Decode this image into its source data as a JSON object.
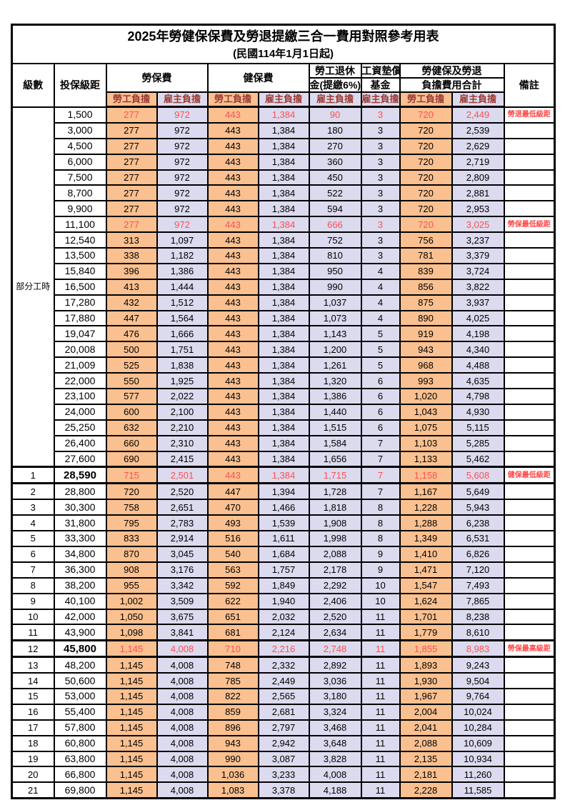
{
  "title": {
    "line1": "2025年勞健保保費及勞退提繳三合一費用對照參考用表",
    "line2": "(民國114年1月1日起)"
  },
  "header": {
    "level": "級數",
    "bracket": "投保級距",
    "labor_fee": "勞保費",
    "health_fee": "健保費",
    "pension_line1": "勞工退休",
    "pension_line2": "金(提繳6%)",
    "wage_fund_line1": "工資墊償",
    "wage_fund_line2": "基金",
    "total_line1": "勞健保及勞退",
    "total_line2": "負擔費用合計",
    "remark": "備註",
    "employee": "勞工負擔",
    "employer": "雇主負擔"
  },
  "colors": {
    "employee_bg": "#FAC090",
    "employer_bg": "#DCDAEE",
    "red_value": "#FF5050",
    "remark_red": "#FF4545",
    "subheader_text": "#9C3A32",
    "border": "#000000"
  },
  "table": {
    "part_time_label": "部分工時",
    "part_time_rowspan": 23,
    "rows": [
      {
        "level": "",
        "bracket": "1,500",
        "values": [
          "277",
          "972",
          "443",
          "1,384",
          "90",
          "3",
          "720",
          "2,449"
        ],
        "remark": "勞退最低級距",
        "red": true,
        "emphasis": false
      },
      {
        "level": "",
        "bracket": "3,000",
        "values": [
          "277",
          "972",
          "443",
          "1,384",
          "180",
          "3",
          "720",
          "2,539"
        ],
        "remark": "",
        "red": false,
        "emphasis": false
      },
      {
        "level": "",
        "bracket": "4,500",
        "values": [
          "277",
          "972",
          "443",
          "1,384",
          "270",
          "3",
          "720",
          "2,629"
        ],
        "remark": "",
        "red": false,
        "emphasis": false
      },
      {
        "level": "",
        "bracket": "6,000",
        "values": [
          "277",
          "972",
          "443",
          "1,384",
          "360",
          "3",
          "720",
          "2,719"
        ],
        "remark": "",
        "red": false,
        "emphasis": false
      },
      {
        "level": "",
        "bracket": "7,500",
        "values": [
          "277",
          "972",
          "443",
          "1,384",
          "450",
          "3",
          "720",
          "2,809"
        ],
        "remark": "",
        "red": false,
        "emphasis": false
      },
      {
        "level": "",
        "bracket": "8,700",
        "values": [
          "277",
          "972",
          "443",
          "1,384",
          "522",
          "3",
          "720",
          "2,881"
        ],
        "remark": "",
        "red": false,
        "emphasis": false
      },
      {
        "level": "",
        "bracket": "9,900",
        "values": [
          "277",
          "972",
          "443",
          "1,384",
          "594",
          "3",
          "720",
          "2,953"
        ],
        "remark": "",
        "red": false,
        "emphasis": false
      },
      {
        "level": "",
        "bracket": "11,100",
        "values": [
          "277",
          "972",
          "443",
          "1,384",
          "666",
          "3",
          "720",
          "3,025"
        ],
        "remark": "勞保最低級距",
        "red": true,
        "emphasis": false
      },
      {
        "level": "",
        "bracket": "12,540",
        "values": [
          "313",
          "1,097",
          "443",
          "1,384",
          "752",
          "3",
          "756",
          "3,237"
        ],
        "remark": "",
        "red": false,
        "emphasis": false
      },
      {
        "level": "",
        "bracket": "13,500",
        "values": [
          "338",
          "1,182",
          "443",
          "1,384",
          "810",
          "3",
          "781",
          "3,379"
        ],
        "remark": "",
        "red": false,
        "emphasis": false
      },
      {
        "level": "",
        "bracket": "15,840",
        "values": [
          "396",
          "1,386",
          "443",
          "1,384",
          "950",
          "4",
          "839",
          "3,724"
        ],
        "remark": "",
        "red": false,
        "emphasis": false
      },
      {
        "level": "",
        "bracket": "16,500",
        "values": [
          "413",
          "1,444",
          "443",
          "1,384",
          "990",
          "4",
          "856",
          "3,822"
        ],
        "remark": "",
        "red": false,
        "emphasis": false
      },
      {
        "level": "",
        "bracket": "17,280",
        "values": [
          "432",
          "1,512",
          "443",
          "1,384",
          "1,037",
          "4",
          "875",
          "3,937"
        ],
        "remark": "",
        "red": false,
        "emphasis": false
      },
      {
        "level": "",
        "bracket": "17,880",
        "values": [
          "447",
          "1,564",
          "443",
          "1,384",
          "1,073",
          "4",
          "890",
          "4,025"
        ],
        "remark": "",
        "red": false,
        "emphasis": false
      },
      {
        "level": "",
        "bracket": "19,047",
        "values": [
          "476",
          "1,666",
          "443",
          "1,384",
          "1,143",
          "5",
          "919",
          "4,198"
        ],
        "remark": "",
        "red": false,
        "emphasis": false
      },
      {
        "level": "",
        "bracket": "20,008",
        "values": [
          "500",
          "1,751",
          "443",
          "1,384",
          "1,200",
          "5",
          "943",
          "4,340"
        ],
        "remark": "",
        "red": false,
        "emphasis": false
      },
      {
        "level": "",
        "bracket": "21,009",
        "values": [
          "525",
          "1,838",
          "443",
          "1,384",
          "1,261",
          "5",
          "968",
          "4,488"
        ],
        "remark": "",
        "red": false,
        "emphasis": false
      },
      {
        "level": "",
        "bracket": "22,000",
        "values": [
          "550",
          "1,925",
          "443",
          "1,384",
          "1,320",
          "6",
          "993",
          "4,635"
        ],
        "remark": "",
        "red": false,
        "emphasis": false
      },
      {
        "level": "",
        "bracket": "23,100",
        "values": [
          "577",
          "2,022",
          "443",
          "1,384",
          "1,386",
          "6",
          "1,020",
          "4,798"
        ],
        "remark": "",
        "red": false,
        "emphasis": false
      },
      {
        "level": "",
        "bracket": "24,000",
        "values": [
          "600",
          "2,100",
          "443",
          "1,384",
          "1,440",
          "6",
          "1,043",
          "4,930"
        ],
        "remark": "",
        "red": false,
        "emphasis": false
      },
      {
        "level": "",
        "bracket": "25,250",
        "values": [
          "632",
          "2,210",
          "443",
          "1,384",
          "1,515",
          "6",
          "1,075",
          "5,115"
        ],
        "remark": "",
        "red": false,
        "emphasis": false
      },
      {
        "level": "",
        "bracket": "26,400",
        "values": [
          "660",
          "2,310",
          "443",
          "1,384",
          "1,584",
          "7",
          "1,103",
          "5,285"
        ],
        "remark": "",
        "red": false,
        "emphasis": false
      },
      {
        "level": "",
        "bracket": "27,600",
        "values": [
          "690",
          "2,415",
          "443",
          "1,384",
          "1,656",
          "7",
          "1,133",
          "5,462"
        ],
        "remark": "",
        "red": false,
        "emphasis": false
      },
      {
        "level": "1",
        "bracket": "28,590",
        "values": [
          "715",
          "2,501",
          "443",
          "1,384",
          "1,715",
          "7",
          "1,158",
          "5,608"
        ],
        "remark": "健保最低級距",
        "red": true,
        "emphasis": true
      },
      {
        "level": "2",
        "bracket": "28,800",
        "values": [
          "720",
          "2,520",
          "447",
          "1,394",
          "1,728",
          "7",
          "1,167",
          "5,649"
        ],
        "remark": "",
        "red": false,
        "emphasis": false
      },
      {
        "level": "3",
        "bracket": "30,300",
        "values": [
          "758",
          "2,651",
          "470",
          "1,466",
          "1,818",
          "8",
          "1,228",
          "5,943"
        ],
        "remark": "",
        "red": false,
        "emphasis": false
      },
      {
        "level": "4",
        "bracket": "31,800",
        "values": [
          "795",
          "2,783",
          "493",
          "1,539",
          "1,908",
          "8",
          "1,288",
          "6,238"
        ],
        "remark": "",
        "red": false,
        "emphasis": false
      },
      {
        "level": "5",
        "bracket": "33,300",
        "values": [
          "833",
          "2,914",
          "516",
          "1,611",
          "1,998",
          "8",
          "1,349",
          "6,531"
        ],
        "remark": "",
        "red": false,
        "emphasis": false
      },
      {
        "level": "6",
        "bracket": "34,800",
        "values": [
          "870",
          "3,045",
          "540",
          "1,684",
          "2,088",
          "9",
          "1,410",
          "6,826"
        ],
        "remark": "",
        "red": false,
        "emphasis": false
      },
      {
        "level": "7",
        "bracket": "36,300",
        "values": [
          "908",
          "3,176",
          "563",
          "1,757",
          "2,178",
          "9",
          "1,471",
          "7,120"
        ],
        "remark": "",
        "red": false,
        "emphasis": false
      },
      {
        "level": "8",
        "bracket": "38,200",
        "values": [
          "955",
          "3,342",
          "592",
          "1,849",
          "2,292",
          "10",
          "1,547",
          "7,493"
        ],
        "remark": "",
        "red": false,
        "emphasis": false
      },
      {
        "level": "9",
        "bracket": "40,100",
        "values": [
          "1,002",
          "3,509",
          "622",
          "1,940",
          "2,406",
          "10",
          "1,624",
          "7,865"
        ],
        "remark": "",
        "red": false,
        "emphasis": false
      },
      {
        "level": "10",
        "bracket": "42,000",
        "values": [
          "1,050",
          "3,675",
          "651",
          "2,032",
          "2,520",
          "11",
          "1,701",
          "8,238"
        ],
        "remark": "",
        "red": false,
        "emphasis": false
      },
      {
        "level": "11",
        "bracket": "43,900",
        "values": [
          "1,098",
          "3,841",
          "681",
          "2,124",
          "2,634",
          "11",
          "1,779",
          "8,610"
        ],
        "remark": "",
        "red": false,
        "emphasis": false
      },
      {
        "level": "12",
        "bracket": "45,800",
        "values": [
          "1,145",
          "4,008",
          "710",
          "2,216",
          "2,748",
          "11",
          "1,855",
          "8,983"
        ],
        "remark": "勞保最高級距",
        "red": true,
        "emphasis": true
      },
      {
        "level": "13",
        "bracket": "48,200",
        "values": [
          "1,145",
          "4,008",
          "748",
          "2,332",
          "2,892",
          "11",
          "1,893",
          "9,243"
        ],
        "remark": "",
        "red": false,
        "emphasis": false
      },
      {
        "level": "14",
        "bracket": "50,600",
        "values": [
          "1,145",
          "4,008",
          "785",
          "2,449",
          "3,036",
          "11",
          "1,930",
          "9,504"
        ],
        "remark": "",
        "red": false,
        "emphasis": false
      },
      {
        "level": "15",
        "bracket": "53,000",
        "values": [
          "1,145",
          "4,008",
          "822",
          "2,565",
          "3,180",
          "11",
          "1,967",
          "9,764"
        ],
        "remark": "",
        "red": false,
        "emphasis": false
      },
      {
        "level": "16",
        "bracket": "55,400",
        "values": [
          "1,145",
          "4,008",
          "859",
          "2,681",
          "3,324",
          "11",
          "2,004",
          "10,024"
        ],
        "remark": "",
        "red": false,
        "emphasis": false
      },
      {
        "level": "17",
        "bracket": "57,800",
        "values": [
          "1,145",
          "4,008",
          "896",
          "2,797",
          "3,468",
          "11",
          "2,041",
          "10,284"
        ],
        "remark": "",
        "red": false,
        "emphasis": false
      },
      {
        "level": "18",
        "bracket": "60,800",
        "values": [
          "1,145",
          "4,008",
          "943",
          "2,942",
          "3,648",
          "11",
          "2,088",
          "10,609"
        ],
        "remark": "",
        "red": false,
        "emphasis": false
      },
      {
        "level": "19",
        "bracket": "63,800",
        "values": [
          "1,145",
          "4,008",
          "990",
          "3,087",
          "3,828",
          "11",
          "2,135",
          "10,934"
        ],
        "remark": "",
        "red": false,
        "emphasis": false
      },
      {
        "level": "20",
        "bracket": "66,800",
        "values": [
          "1,145",
          "4,008",
          "1,036",
          "3,233",
          "4,008",
          "11",
          "2,181",
          "11,260"
        ],
        "remark": "",
        "red": false,
        "emphasis": false
      },
      {
        "level": "21",
        "bracket": "69,800",
        "values": [
          "1,145",
          "4,008",
          "1,083",
          "3,378",
          "4,188",
          "11",
          "2,228",
          "11,585"
        ],
        "remark": "",
        "red": false,
        "emphasis": false
      }
    ]
  }
}
